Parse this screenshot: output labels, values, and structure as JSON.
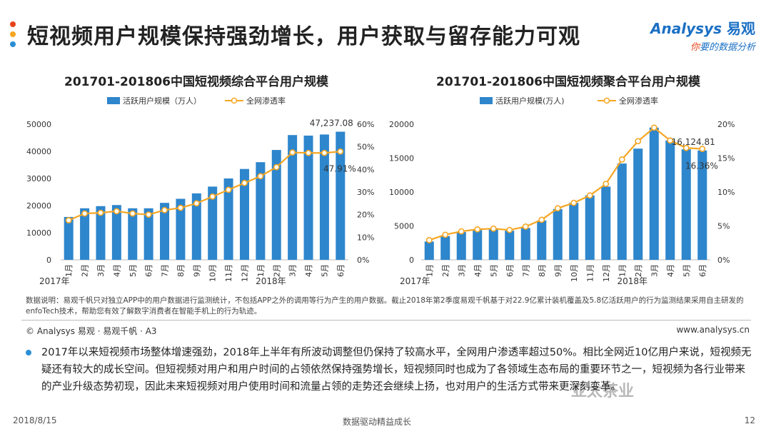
{
  "header": {
    "title": "短视频用户规模保持强劲增长，用户获取与留存能力可观",
    "logo_main": "Analysys",
    "logo_cn": "易观",
    "logo_sub_prefix": "你",
    "logo_sub_rest": "要的数据分析",
    "dot_colors": [
      "#e8431b",
      "#f5a623",
      "#2a8fd4"
    ]
  },
  "chart_data": [
    {
      "type": "bar",
      "title": "201701-201806中国短视频综合平台用户规模",
      "categories": [
        "1月",
        "2月",
        "3月",
        "4月",
        "5月",
        "6月",
        "7月",
        "8月",
        "9月",
        "10月",
        "11月",
        "12月",
        "1月",
        "2月",
        "3月",
        "4月",
        "5月",
        "6月"
      ],
      "year_labels": [
        "2017年",
        "2018年"
      ],
      "series": [
        {
          "name": "活跃用户规模（万人）",
          "axis": "left",
          "type": "bar",
          "color": "#2e86cc",
          "values": [
            15800,
            19000,
            19800,
            20200,
            19000,
            19000,
            21000,
            22500,
            24500,
            27000,
            30000,
            33500,
            36000,
            40500,
            46000,
            45800,
            46200,
            47237.08
          ]
        },
        {
          "name": "全网渗透率",
          "axis": "right",
          "type": "line",
          "color": "#f5a623",
          "values": [
            17.5,
            20.5,
            20.8,
            21.5,
            20.5,
            20.0,
            22.0,
            23.0,
            25.0,
            28.0,
            31.0,
            34.0,
            37.0,
            41.0,
            47.5,
            47.3,
            47.3,
            47.91
          ]
        }
      ],
      "ylim_left": [
        0,
        50000
      ],
      "yticks_left": [
        "0",
        "10000",
        "20000",
        "30000",
        "40000",
        "50000"
      ],
      "ylim_right": [
        0,
        60
      ],
      "yticks_right": [
        "0%",
        "10%",
        "20%",
        "30%",
        "40%",
        "50%",
        "60%"
      ],
      "data_labels": [
        {
          "text": "47,237.08",
          "series": 0,
          "index": 17
        },
        {
          "text": "47.91%",
          "series": 1,
          "index": 17
        }
      ]
    },
    {
      "type": "bar",
      "title": "201701-201806中国短视频聚合平台用户规模",
      "categories": [
        "1月",
        "2月",
        "3月",
        "4月",
        "5月",
        "6月",
        "7月",
        "8月",
        "9月",
        "10月",
        "11月",
        "12月",
        "1月",
        "2月",
        "3月",
        "4月",
        "5月",
        "6月"
      ],
      "year_labels": [
        "2017年",
        "2018年"
      ],
      "series": [
        {
          "name": "活跃用户规模(万人)",
          "axis": "left",
          "type": "bar",
          "color": "#2e86cc",
          "values": [
            2700,
            3500,
            4100,
            4400,
            4500,
            4300,
            4700,
            5800,
            7500,
            8400,
            9500,
            10800,
            14200,
            16400,
            19500,
            17600,
            16300,
            16124.81
          ]
        },
        {
          "name": "全网渗透率",
          "axis": "right",
          "type": "line",
          "color": "#f5a623",
          "values": [
            2.9,
            3.7,
            4.2,
            4.5,
            4.6,
            4.4,
            4.9,
            5.9,
            7.6,
            8.4,
            9.5,
            11.2,
            14.8,
            17.5,
            19.5,
            17.6,
            16.5,
            16.36
          ]
        }
      ],
      "ylim_left": [
        0,
        20000
      ],
      "yticks_left": [
        "0",
        "5000",
        "10000",
        "15000",
        "20000"
      ],
      "ylim_right": [
        0,
        20
      ],
      "yticks_right": [
        "0%",
        "5%",
        "10%",
        "15%",
        "20%"
      ],
      "data_labels": [
        {
          "text": "16,124.81",
          "series": 0,
          "index": 17
        },
        {
          "text": "16.36%",
          "series": 1,
          "index": 17
        }
      ]
    }
  ],
  "note": "数据说明：易观千帆只对独立APP中的用户数据进行监测统计，不包括APP之外的调用等行为产生的用户数据。截止2018年第2季度易观千帆基于对22.9亿累计装机覆盖及5.8亿活跃用户的行为监测结果采用自主研发的enfoTech技术，帮助您有效了解数字消费者在智能手机上的行为轨迹。",
  "copyright": "© Analysys 易观 · 易观千帆 · A3",
  "website": "www.analysys.cn",
  "bullet": "2017年以来短视频市场整体增速强劲，2018年上半年有所波动调整但仍保持了较高水平，全网用户渗透率超过50%。相比全网近10亿用户来说，短视频无疑还有较大的成长空间。但短视频对用户和用户时间的占领依然保持强势增长，短视频同时也成为了各领域生态布局的重要环节之一，短视频为各行业带来的产业升级态势初现，因此未来短视频对用户使用时间和流量占领的走势还会继续上扬，也对用户的生活方式带来更深刻变革。",
  "footer": {
    "date": "2018/8/15",
    "slogan": "数据驱动精益成长",
    "page": "12"
  },
  "watermark": "亚太茶业"
}
